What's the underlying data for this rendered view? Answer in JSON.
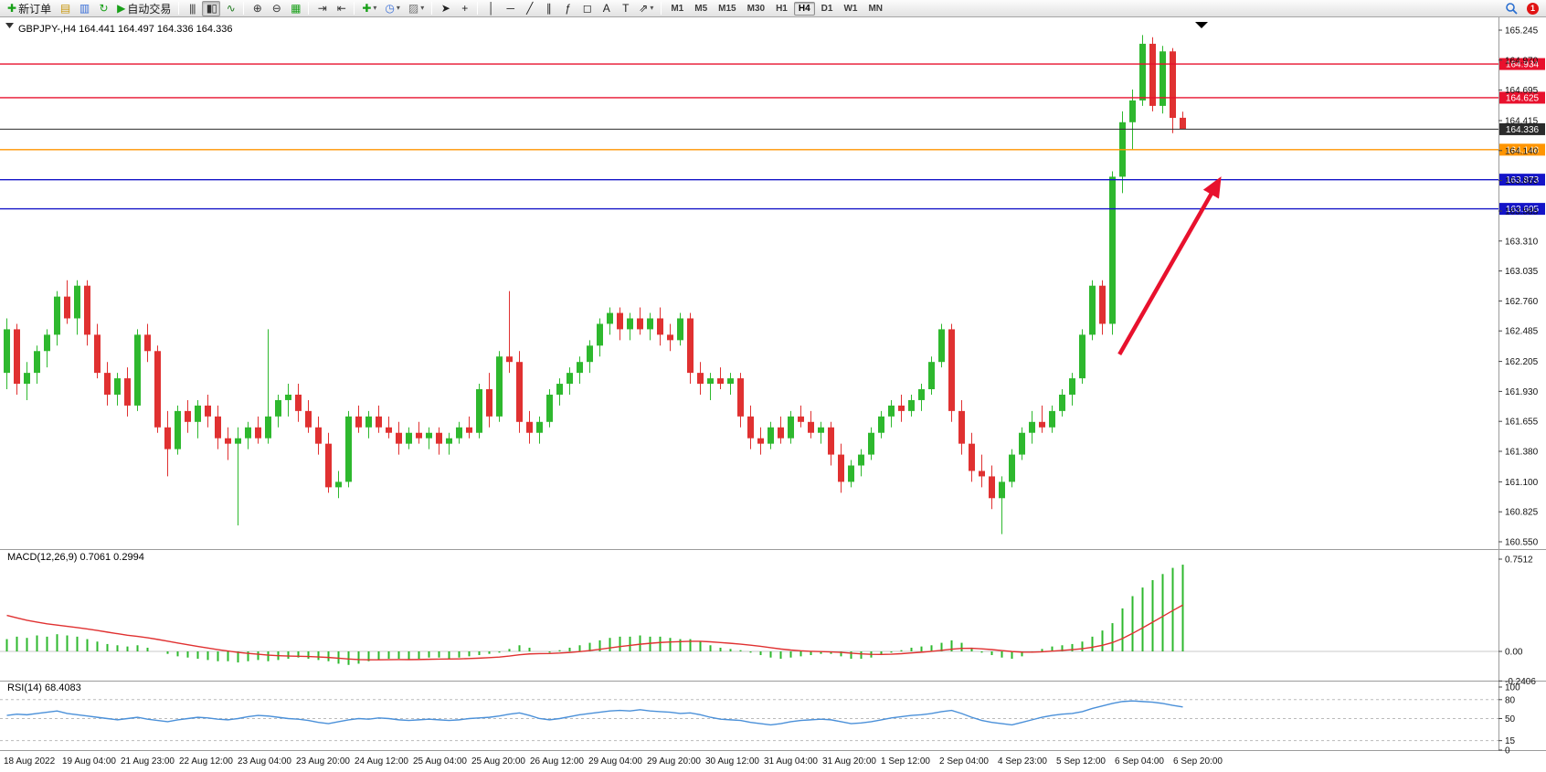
{
  "toolbar": {
    "caret_glyph": "▾",
    "buttons": [
      {
        "type": "button",
        "name": "new-order-button",
        "glyph": "✚",
        "color": "#18a018",
        "label": "新订单"
      },
      {
        "type": "button",
        "name": "market-watch-button",
        "glyph": "▤",
        "color": "#c8960c"
      },
      {
        "type": "button",
        "name": "data-window-button",
        "glyph": "▥",
        "color": "#3a6fd8"
      },
      {
        "type": "button",
        "name": "refresh-button",
        "glyph": "↻",
        "color": "#18a018"
      },
      {
        "type": "button",
        "name": "auto-trading-button",
        "glyph": "▶",
        "color": "#18a018",
        "label": "自动交易"
      },
      {
        "type": "sep"
      },
      {
        "type": "button",
        "name": "bar-chart-button",
        "glyph": "|||",
        "color": "#333"
      },
      {
        "type": "button",
        "name": "candlestick-chart-button",
        "glyph": "▮▯",
        "color": "#333",
        "active": true
      },
      {
        "type": "button",
        "name": "line-chart-button",
        "glyph": "∿",
        "color": "#1f7a1f"
      },
      {
        "type": "sep"
      },
      {
        "type": "button",
        "name": "zoom-in-button",
        "glyph": "⊕",
        "color": "#333"
      },
      {
        "type": "button",
        "name": "zoom-out-button",
        "glyph": "⊖",
        "color": "#333"
      },
      {
        "type": "button",
        "name": "tile-windows-button",
        "glyph": "▦",
        "color": "#18a018"
      },
      {
        "type": "sep"
      },
      {
        "type": "button",
        "name": "auto-scroll-button",
        "glyph": "⇥",
        "color": "#333"
      },
      {
        "type": "button",
        "name": "chart-shift-button",
        "glyph": "⇤",
        "color": "#333"
      },
      {
        "type": "sep"
      },
      {
        "type": "button",
        "name": "indicators-button",
        "glyph": "✚",
        "color": "#18a018",
        "caret": true
      },
      {
        "type": "button",
        "name": "periods-button",
        "glyph": "◷",
        "color": "#3a6fd8",
        "caret": true
      },
      {
        "type": "button",
        "name": "templates-button",
        "glyph": "▨",
        "color": "#777",
        "caret": true
      },
      {
        "type": "sep"
      },
      {
        "type": "button",
        "name": "cursor-button",
        "glyph": "➤",
        "color": "#222"
      },
      {
        "type": "button",
        "name": "crosshair-button",
        "glyph": "+",
        "color": "#222"
      },
      {
        "type": "sep"
      },
      {
        "type": "button",
        "name": "vertical-line-button",
        "glyph": "│",
        "color": "#222"
      },
      {
        "type": "button",
        "name": "horizontal-line-button",
        "glyph": "─",
        "color": "#222"
      },
      {
        "type": "button",
        "name": "trendline-button",
        "glyph": "╱",
        "color": "#222"
      },
      {
        "type": "button",
        "name": "equidistant-channel-button",
        "glyph": "∥",
        "color": "#222"
      },
      {
        "type": "button",
        "name": "fibonacci-button",
        "glyph": "ƒ",
        "color": "#222"
      },
      {
        "type": "button",
        "name": "shapes-button",
        "glyph": "◻",
        "color": "#222"
      },
      {
        "type": "button",
        "name": "text-button",
        "glyph": "A",
        "color": "#222"
      },
      {
        "type": "button",
        "name": "text-label-button",
        "glyph": "T",
        "color": "#222"
      },
      {
        "type": "button",
        "name": "arrows-button",
        "glyph": "⇗",
        "color": "#222",
        "caret": true
      },
      {
        "type": "sep"
      }
    ],
    "timeframes": [
      "M1",
      "M5",
      "M15",
      "M30",
      "H1",
      "H4",
      "D1",
      "W1",
      "MN"
    ],
    "active_timeframe": "H4",
    "notification_count": "1"
  },
  "chart": {
    "expand_arrow": "▼",
    "title_line": "GBPJPY-,H4 164.441 164.497 164.336 164.336",
    "macd_label_line": "MACD(12,26,9) 0.7061 0.2994",
    "rsi_label_line": "RSI(14) 68.4083"
  },
  "chart_data": {
    "type": "candlestick",
    "symbol": "GBPJPY-",
    "period": "H4",
    "ohlc_current": {
      "open": "164.441",
      "high": "164.497",
      "low": "164.336",
      "close": "164.336"
    },
    "price_range": [
      160.55,
      165.245
    ],
    "price_axis_ticks": [
      "165.245",
      "164.970",
      "164.695",
      "164.415",
      "164.140",
      "163.865",
      "163.585",
      "163.310",
      "163.035",
      "162.760",
      "162.485",
      "162.205",
      "161.930",
      "161.655",
      "161.380",
      "161.100",
      "160.825",
      "160.550"
    ],
    "colors": {
      "bull": "#2eb82e",
      "bear": "#e03131",
      "macd_histogram": "#2eb82e",
      "macd_signal": "#e03131",
      "rsi_line": "#4a90d9",
      "arrow": "#e8112d"
    },
    "time_labels": [
      "18 Aug 2022",
      "19 Aug 04:00",
      "21 Aug 23:00",
      "22 Aug 12:00",
      "23 Aug 04:00",
      "23 Aug 20:00",
      "24 Aug 12:00",
      "25 Aug 04:00",
      "25 Aug 20:00",
      "26 Aug 12:00",
      "29 Aug 04:00",
      "29 Aug 20:00",
      "30 Aug 12:00",
      "31 Aug 04:00",
      "31 Aug 20:00",
      "1 Sep 12:00",
      "2 Sep 04:00",
      "4 Sep 23:00",
      "5 Sep 12:00",
      "6 Sep 04:00",
      "6 Sep 20:00"
    ],
    "candles": [
      [
        162.1,
        162.6,
        161.95,
        162.5
      ],
      [
        162.5,
        162.55,
        161.9,
        162.0
      ],
      [
        162.0,
        162.2,
        161.85,
        162.1
      ],
      [
        162.1,
        162.35,
        162.0,
        162.3
      ],
      [
        162.3,
        162.5,
        162.15,
        162.45
      ],
      [
        162.45,
        162.85,
        162.35,
        162.8
      ],
      [
        162.8,
        162.95,
        162.55,
        162.6
      ],
      [
        162.6,
        162.95,
        162.45,
        162.9
      ],
      [
        162.9,
        162.95,
        162.35,
        162.45
      ],
      [
        162.45,
        162.55,
        162.05,
        162.1
      ],
      [
        162.1,
        162.2,
        161.8,
        161.9
      ],
      [
        161.9,
        162.1,
        161.8,
        162.05
      ],
      [
        162.05,
        162.15,
        161.7,
        161.8
      ],
      [
        161.8,
        162.5,
        161.75,
        162.45
      ],
      [
        162.45,
        162.55,
        162.2,
        162.3
      ],
      [
        162.3,
        162.35,
        161.55,
        161.6
      ],
      [
        161.6,
        161.75,
        161.15,
        161.4
      ],
      [
        161.4,
        161.8,
        161.35,
        161.75
      ],
      [
        161.75,
        161.85,
        161.55,
        161.65
      ],
      [
        161.65,
        161.85,
        161.5,
        161.8
      ],
      [
        161.8,
        161.9,
        161.6,
        161.7
      ],
      [
        161.7,
        161.8,
        161.4,
        161.5
      ],
      [
        161.5,
        161.6,
        161.3,
        161.45
      ],
      [
        161.45,
        161.6,
        160.7,
        161.5
      ],
      [
        161.5,
        161.65,
        161.4,
        161.6
      ],
      [
        161.6,
        161.7,
        161.45,
        161.5
      ],
      [
        161.5,
        162.5,
        161.45,
        161.7
      ],
      [
        161.7,
        161.9,
        161.6,
        161.85
      ],
      [
        161.85,
        162.0,
        161.7,
        161.9
      ],
      [
        161.9,
        162.0,
        161.65,
        161.75
      ],
      [
        161.75,
        161.85,
        161.55,
        161.6
      ],
      [
        161.6,
        161.7,
        161.35,
        161.45
      ],
      [
        161.45,
        161.55,
        161.0,
        161.05
      ],
      [
        161.05,
        161.2,
        160.95,
        161.1
      ],
      [
        161.1,
        161.75,
        161.05,
        161.7
      ],
      [
        161.7,
        161.8,
        161.55,
        161.6
      ],
      [
        161.6,
        161.75,
        161.5,
        161.7
      ],
      [
        161.7,
        161.8,
        161.55,
        161.6
      ],
      [
        161.6,
        161.7,
        161.5,
        161.55
      ],
      [
        161.55,
        161.65,
        161.35,
        161.45
      ],
      [
        161.45,
        161.6,
        161.4,
        161.55
      ],
      [
        161.55,
        161.65,
        161.45,
        161.5
      ],
      [
        161.5,
        161.6,
        161.4,
        161.55
      ],
      [
        161.55,
        161.6,
        161.35,
        161.45
      ],
      [
        161.45,
        161.55,
        161.35,
        161.5
      ],
      [
        161.5,
        161.65,
        161.45,
        161.6
      ],
      [
        161.6,
        161.7,
        161.5,
        161.55
      ],
      [
        161.55,
        162.0,
        161.5,
        161.95
      ],
      [
        161.95,
        162.1,
        161.6,
        161.7
      ],
      [
        161.7,
        162.3,
        161.65,
        162.25
      ],
      [
        162.25,
        162.85,
        162.1,
        162.2
      ],
      [
        162.2,
        162.3,
        161.55,
        161.65
      ],
      [
        161.65,
        161.75,
        161.45,
        161.55
      ],
      [
        161.55,
        161.7,
        161.45,
        161.65
      ],
      [
        161.65,
        161.95,
        161.6,
        161.9
      ],
      [
        161.9,
        162.05,
        161.8,
        162.0
      ],
      [
        162.0,
        162.15,
        161.9,
        162.1
      ],
      [
        162.1,
        162.25,
        162.0,
        162.2
      ],
      [
        162.2,
        162.4,
        162.1,
        162.35
      ],
      [
        162.35,
        162.6,
        162.25,
        162.55
      ],
      [
        162.55,
        162.7,
        162.45,
        162.65
      ],
      [
        162.65,
        162.7,
        162.4,
        162.5
      ],
      [
        162.5,
        162.65,
        162.4,
        162.6
      ],
      [
        162.6,
        162.7,
        162.45,
        162.5
      ],
      [
        162.5,
        162.65,
        162.4,
        162.6
      ],
      [
        162.6,
        162.7,
        162.35,
        162.45
      ],
      [
        162.45,
        162.55,
        162.3,
        162.4
      ],
      [
        162.4,
        162.65,
        162.35,
        162.6
      ],
      [
        162.6,
        162.65,
        162.0,
        162.1
      ],
      [
        162.1,
        162.2,
        161.9,
        162.0
      ],
      [
        162.0,
        162.1,
        161.85,
        162.05
      ],
      [
        162.05,
        162.15,
        161.95,
        162.0
      ],
      [
        162.0,
        162.1,
        161.9,
        162.05
      ],
      [
        162.05,
        162.1,
        161.6,
        161.7
      ],
      [
        161.7,
        161.8,
        161.4,
        161.5
      ],
      [
        161.5,
        161.6,
        161.35,
        161.45
      ],
      [
        161.45,
        161.65,
        161.4,
        161.6
      ],
      [
        161.6,
        161.7,
        161.45,
        161.5
      ],
      [
        161.5,
        161.75,
        161.45,
        161.7
      ],
      [
        161.7,
        161.8,
        161.6,
        161.65
      ],
      [
        161.65,
        161.75,
        161.5,
        161.55
      ],
      [
        161.55,
        161.65,
        161.45,
        161.6
      ],
      [
        161.6,
        161.65,
        161.25,
        161.35
      ],
      [
        161.35,
        161.45,
        161.0,
        161.1
      ],
      [
        161.1,
        161.3,
        161.05,
        161.25
      ],
      [
        161.25,
        161.4,
        161.15,
        161.35
      ],
      [
        161.35,
        161.6,
        161.3,
        161.55
      ],
      [
        161.55,
        161.75,
        161.5,
        161.7
      ],
      [
        161.7,
        161.85,
        161.6,
        161.8
      ],
      [
        161.8,
        161.9,
        161.65,
        161.75
      ],
      [
        161.75,
        161.9,
        161.7,
        161.85
      ],
      [
        161.85,
        162.0,
        161.75,
        161.95
      ],
      [
        161.95,
        162.25,
        161.9,
        162.2
      ],
      [
        162.2,
        162.55,
        162.15,
        162.5
      ],
      [
        162.5,
        162.55,
        161.65,
        161.75
      ],
      [
        161.75,
        161.85,
        161.35,
        161.45
      ],
      [
        161.45,
        161.55,
        161.1,
        161.2
      ],
      [
        161.2,
        161.35,
        161.05,
        161.15
      ],
      [
        161.15,
        161.25,
        160.85,
        160.95
      ],
      [
        160.95,
        161.15,
        160.62,
        161.1
      ],
      [
        161.1,
        161.4,
        161.05,
        161.35
      ],
      [
        161.35,
        161.6,
        161.3,
        161.55
      ],
      [
        161.55,
        161.75,
        161.45,
        161.65
      ],
      [
        161.65,
        161.8,
        161.55,
        161.6
      ],
      [
        161.6,
        161.8,
        161.55,
        161.75
      ],
      [
        161.75,
        161.95,
        161.7,
        161.9
      ],
      [
        161.9,
        162.1,
        161.8,
        162.05
      ],
      [
        162.05,
        162.5,
        162.0,
        162.45
      ],
      [
        162.45,
        162.95,
        162.4,
        162.9
      ],
      [
        162.9,
        162.95,
        162.45,
        162.55
      ],
      [
        162.55,
        163.95,
        162.45,
        163.9
      ],
      [
        163.9,
        164.5,
        163.75,
        164.4
      ],
      [
        164.4,
        164.7,
        164.15,
        164.6
      ],
      [
        164.6,
        165.2,
        164.55,
        165.12
      ],
      [
        165.12,
        165.18,
        164.5,
        164.55
      ],
      [
        164.55,
        165.1,
        164.48,
        165.05
      ],
      [
        165.05,
        165.08,
        164.3,
        164.44
      ],
      [
        164.441,
        164.497,
        164.336,
        164.336
      ]
    ],
    "horizontal_lines": [
      {
        "price": 164.934,
        "label": "164.934",
        "color": "#e8112d"
      },
      {
        "price": 164.625,
        "label": "164.625",
        "color": "#e8112d"
      },
      {
        "price": 164.148,
        "label": "164.148",
        "color": "#ff9500"
      },
      {
        "price": 163.873,
        "label": "163.873",
        "color": "#1414c8"
      },
      {
        "price": 163.605,
        "label": "163.605",
        "color": "#1414c8"
      }
    ],
    "current_price_line": {
      "price": 164.336,
      "label": "164.336",
      "color": "#2b2b2b"
    },
    "annotation_arrow": {
      "from": [
        110.7,
        162.27
      ],
      "to": [
        120.5,
        163.85
      ],
      "color": "#e8112d",
      "width": 4.5
    },
    "indicators": {
      "macd": {
        "label": "MACD(12,26,9)",
        "main_value": "0.7061",
        "signal_value": "0.2994",
        "axis_ticks": [
          "0.7512",
          "0.00",
          "-0.2406"
        ],
        "signal_start": 0.32,
        "signal_alpha": 0.12,
        "histogram": [
          0.1,
          0.12,
          0.11,
          0.13,
          0.12,
          0.14,
          0.13,
          0.12,
          0.1,
          0.08,
          0.06,
          0.05,
          0.04,
          0.05,
          0.03,
          0.0,
          -0.02,
          -0.04,
          -0.05,
          -0.06,
          -0.07,
          -0.08,
          -0.08,
          -0.09,
          -0.08,
          -0.07,
          -0.08,
          -0.07,
          -0.06,
          -0.05,
          -0.06,
          -0.07,
          -0.08,
          -0.1,
          -0.11,
          -0.1,
          -0.08,
          -0.07,
          -0.06,
          -0.06,
          -0.07,
          -0.06,
          -0.05,
          -0.05,
          -0.06,
          -0.05,
          -0.04,
          -0.03,
          -0.02,
          -0.01,
          0.02,
          0.05,
          0.03,
          0.0,
          -0.01,
          0.01,
          0.03,
          0.05,
          0.07,
          0.09,
          0.11,
          0.12,
          0.12,
          0.13,
          0.12,
          0.12,
          0.11,
          0.1,
          0.1,
          0.08,
          0.05,
          0.03,
          0.02,
          0.01,
          -0.01,
          -0.03,
          -0.05,
          -0.06,
          -0.05,
          -0.04,
          -0.03,
          -0.02,
          -0.02,
          -0.04,
          -0.06,
          -0.06,
          -0.05,
          -0.03,
          -0.01,
          0.01,
          0.03,
          0.04,
          0.05,
          0.07,
          0.09,
          0.07,
          0.03,
          -0.01,
          -0.03,
          -0.05,
          -0.06,
          -0.04,
          -0.01,
          0.02,
          0.04,
          0.05,
          0.06,
          0.08,
          0.12,
          0.17,
          0.23,
          0.35,
          0.45,
          0.52,
          0.58,
          0.63,
          0.68,
          0.7061
        ]
      },
      "rsi": {
        "label": "RSI(14)",
        "value": "68.4083",
        "axis_ticks": [
          "100",
          "80",
          "50",
          "15",
          "0"
        ],
        "levels": [
          80,
          50,
          15
        ],
        "range": [
          0,
          100
        ],
        "values": [
          55,
          57,
          56,
          58,
          60,
          62,
          58,
          56,
          54,
          52,
          50,
          48,
          50,
          52,
          49,
          47,
          45,
          48,
          50,
          52,
          51,
          49,
          48,
          50,
          53,
          55,
          54,
          52,
          50,
          49,
          47,
          44,
          42,
          45,
          48,
          50,
          49,
          51,
          50,
          48,
          47,
          48,
          49,
          48,
          47,
          48,
          50,
          51,
          52,
          54,
          57,
          59,
          55,
          50,
          48,
          50,
          53,
          56,
          58,
          60,
          62,
          63,
          62,
          64,
          62,
          61,
          60,
          58,
          59,
          56,
          52,
          49,
          48,
          47,
          44,
          42,
          40,
          42,
          45,
          47,
          48,
          49,
          48,
          45,
          42,
          43,
          45,
          48,
          51,
          53,
          55,
          56,
          58,
          61,
          63,
          58,
          52,
          47,
          44,
          42,
          40,
          44,
          48,
          52,
          55,
          57,
          58,
          61,
          66,
          70,
          74,
          77,
          78,
          77,
          76,
          74,
          71,
          68.4
        ]
      }
    }
  }
}
